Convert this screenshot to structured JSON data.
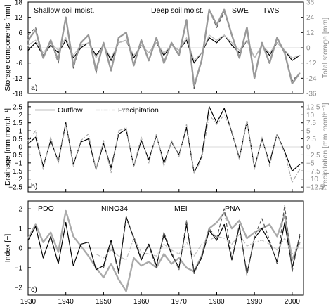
{
  "chart_data": [
    {
      "type": "line",
      "panel_label": "a)",
      "xlim": [
        1930,
        2003
      ],
      "ylabel": "Storage components [mm]",
      "ylim": [
        -18,
        18
      ],
      "yticks": [
        -18,
        -12,
        -6,
        0,
        6,
        12,
        18
      ],
      "ylabel_right": "Total storage [mm]",
      "ylim_right": [
        -36,
        36
      ],
      "yticks_right": [
        -36,
        -24,
        -12,
        0,
        12,
        24,
        36
      ],
      "legend": "top",
      "series": [
        {
          "name": "Shallow soil moist.",
          "axis": "left",
          "style": "solid",
          "color": "#000000",
          "x": [
            1930,
            1932,
            1934,
            1936,
            1938,
            1940,
            1942,
            1944,
            1946,
            1948,
            1950,
            1952,
            1954,
            1956,
            1958,
            1960,
            1962,
            1964,
            1966,
            1968,
            1970,
            1972,
            1974,
            1976,
            1978,
            1980,
            1982,
            1984,
            1986,
            1988,
            1990,
            1992,
            1994,
            1996,
            1998,
            2000,
            2002
          ],
          "y": [
            -1,
            2,
            -3,
            1,
            -2,
            3,
            -4,
            0,
            2,
            -3,
            1,
            -5,
            2,
            3,
            -4,
            1,
            -2,
            2,
            -3,
            1,
            -1,
            3,
            -6,
            -2,
            4,
            2,
            5,
            1,
            -2,
            3,
            -4,
            1,
            -3,
            2,
            -1,
            -5,
            -3
          ]
        },
        {
          "name": "Deep soil moist.",
          "axis": "left",
          "style": "dashed",
          "color": "#555555",
          "x": [
            1930,
            1932,
            1934,
            1936,
            1938,
            1940,
            1942,
            1944,
            1946,
            1948,
            1950,
            1952,
            1954,
            1956,
            1958,
            1960,
            1962,
            1964,
            1966,
            1968,
            1970,
            1972,
            1974,
            1976,
            1978,
            1980,
            1982,
            1984,
            1986,
            1988,
            1990,
            1992,
            1994,
            1996,
            1998,
            2000,
            2002
          ],
          "y": [
            5,
            8,
            -4,
            3,
            -6,
            12,
            -8,
            2,
            5,
            -10,
            2,
            -9,
            4,
            6,
            -7,
            3,
            -5,
            4,
            -6,
            2,
            -3,
            10,
            -16,
            -5,
            15,
            8,
            14,
            5,
            -4,
            8,
            -12,
            2,
            -6,
            4,
            -2,
            -13,
            -10
          ]
        },
        {
          "name": "SWE",
          "axis": "left",
          "style": "solid",
          "color": "#bdbdbd",
          "x": [
            1930,
            1932,
            1934,
            1936,
            1938,
            1940,
            1942,
            1944,
            1946,
            1948,
            1950,
            1952,
            1954,
            1956,
            1958,
            1960,
            1962,
            1964,
            1966,
            1968,
            1970,
            1972,
            1974,
            1976,
            1978,
            1980,
            1982,
            1984,
            1986,
            1988,
            1990,
            1992,
            1994,
            1996,
            1998,
            2000,
            2002
          ],
          "y": [
            1,
            3,
            -2,
            2,
            -1,
            4,
            -3,
            1,
            2,
            -4,
            1,
            -4,
            2,
            3,
            -3,
            1,
            -2,
            2,
            -2,
            1,
            -1,
            4,
            -5,
            -2,
            5,
            3,
            5,
            2,
            -1,
            3,
            -4,
            1,
            -2,
            2,
            -1,
            -4,
            -3
          ]
        },
        {
          "name": "TWS",
          "axis": "right",
          "style": "solid-thick",
          "color": "#999999",
          "x": [
            1930,
            1932,
            1934,
            1936,
            1938,
            1940,
            1942,
            1944,
            1946,
            1948,
            1950,
            1952,
            1954,
            1956,
            1958,
            1960,
            1962,
            1964,
            1966,
            1968,
            1970,
            1972,
            1974,
            1976,
            1978,
            1980,
            1982,
            1984,
            1986,
            1988,
            1990,
            1992,
            1994,
            1996,
            1998,
            2000,
            2002
          ],
          "y": [
            6,
            14,
            -8,
            6,
            -10,
            24,
            -14,
            4,
            10,
            -18,
            4,
            -18,
            8,
            12,
            -14,
            6,
            -10,
            8,
            -12,
            4,
            -6,
            22,
            -30,
            -10,
            30,
            18,
            30,
            10,
            -8,
            16,
            -24,
            4,
            -12,
            8,
            -4,
            -28,
            -20
          ]
        }
      ]
    },
    {
      "type": "line",
      "panel_label": "b)",
      "xlim": [
        1930,
        2003
      ],
      "ylabel": "Drainage [mm month⁻¹]",
      "ylim": [
        -2.8,
        2.8
      ],
      "yticks": [
        -2.5,
        -2,
        -1.5,
        -1,
        -0.5,
        0,
        0.5,
        1,
        1.5,
        2,
        2.5
      ],
      "yticklabels": [
        "−2.5",
        "−2",
        "−1.5",
        "−1",
        "−0.5",
        "0",
        "0.5",
        "1",
        "1.5",
        "2",
        "2.5"
      ],
      "ylabel_right": "Precipitation [mm month⁻¹]",
      "ylim_right": [
        -14,
        14
      ],
      "yticks_right": [
        -12.5,
        -10,
        -7.5,
        -5,
        -2.5,
        0,
        2.5,
        5,
        7.5,
        10,
        12.5
      ],
      "yticklabels_right": [
        "−12.5",
        "−10",
        "−7.5",
        "−5",
        "−2.5",
        "0",
        "2.5",
        "5",
        "7.5",
        "10",
        "12.5"
      ],
      "legend": "top-left",
      "series": [
        {
          "name": "Outflow",
          "axis": "left",
          "style": "solid",
          "color": "#000000",
          "x": [
            1930,
            1932,
            1934,
            1936,
            1938,
            1940,
            1942,
            1944,
            1946,
            1948,
            1950,
            1952,
            1954,
            1956,
            1958,
            1960,
            1962,
            1964,
            1966,
            1968,
            1970,
            1972,
            1974,
            1976,
            1978,
            1980,
            1982,
            1984,
            1986,
            1988,
            1990,
            1992,
            1994,
            1996,
            1998,
            2000,
            2002
          ],
          "y": [
            0.2,
            0.6,
            -1.2,
            0.4,
            -0.9,
            1.5,
            -1.1,
            0.3,
            0.5,
            -1.4,
            0.2,
            -1.3,
            0.8,
            1.1,
            -1.2,
            0.4,
            -0.8,
            0.7,
            -1.0,
            0.3,
            -0.5,
            1.2,
            -1.6,
            -0.6,
            2.5,
            1.5,
            2.4,
            0.9,
            -0.7,
            1.6,
            -1.3,
            0.5,
            -1.0,
            0.8,
            -0.3,
            -1.5,
            -1.1
          ]
        },
        {
          "name": "Precipitation",
          "axis": "right",
          "style": "dashdot",
          "color": "#aaaaaa",
          "x": [
            1930,
            1932,
            1934,
            1936,
            1938,
            1940,
            1942,
            1944,
            1946,
            1948,
            1950,
            1952,
            1954,
            1956,
            1958,
            1960,
            1962,
            1964,
            1966,
            1968,
            1970,
            1972,
            1974,
            1976,
            1978,
            1980,
            1982,
            1984,
            1986,
            1988,
            1990,
            1992,
            1994,
            1996,
            1998,
            2000,
            2002
          ],
          "y": [
            2,
            5,
            -7,
            3,
            -5,
            7,
            -6,
            2,
            4,
            -7,
            2,
            -8,
            5,
            6,
            -6,
            3,
            -5,
            4,
            -6,
            2,
            -3,
            7,
            -8,
            -4,
            10,
            7,
            10,
            5,
            -4,
            8,
            -7,
            3,
            -6,
            4,
            -2,
            -11,
            -7
          ]
        }
      ]
    },
    {
      "type": "line",
      "panel_label": "c)",
      "xlim": [
        1930,
        2003
      ],
      "xticks": [
        1930,
        1940,
        1950,
        1960,
        1970,
        1980,
        1990,
        2000
      ],
      "ylabel": "Index [−]",
      "ylim": [
        -2.4,
        2.4
      ],
      "yticks": [
        -2,
        -1,
        0,
        1,
        2
      ],
      "yticklabels": [
        "−2",
        "−1",
        "0",
        "1",
        "2"
      ],
      "legend": "top",
      "series": [
        {
          "name": "PDO",
          "style": "solid-thick",
          "color": "#aaaaaa",
          "x": [
            1930,
            1932,
            1934,
            1936,
            1938,
            1940,
            1942,
            1944,
            1946,
            1948,
            1950,
            1952,
            1954,
            1956,
            1958,
            1960,
            1962,
            1964,
            1966,
            1968,
            1970,
            1972,
            1974,
            1976,
            1978,
            1980,
            1982,
            1984,
            1986,
            1988,
            1990,
            1992,
            1994,
            1996,
            1998,
            2000,
            2002
          ],
          "y": [
            0.5,
            1.2,
            0.3,
            0.8,
            -0.2,
            1.9,
            0.6,
            0.1,
            -0.4,
            -1.0,
            -1.5,
            -0.8,
            -1.6,
            -2.2,
            -0.5,
            -0.9,
            -0.7,
            -1.0,
            -0.3,
            -0.8,
            -0.5,
            -1.0,
            -1.2,
            -0.4,
            1.0,
            1.3,
            1.8,
            1.0,
            1.4,
            0.5,
            0.8,
            1.0,
            1.2,
            0.6,
            1.7,
            -0.6,
            0.3
          ]
        },
        {
          "name": "NINO34",
          "style": "solid",
          "color": "#000000",
          "x": [
            1930,
            1932,
            1934,
            1936,
            1938,
            1940,
            1942,
            1944,
            1946,
            1948,
            1950,
            1952,
            1954,
            1956,
            1958,
            1960,
            1962,
            1964,
            1966,
            1968,
            1970,
            1972,
            1974,
            1976,
            1978,
            1980,
            1982,
            1984,
            1986,
            1988,
            1990,
            1992,
            1994,
            1996,
            1998,
            2000,
            2002
          ],
          "y": [
            0.4,
            1.1,
            -0.5,
            0.6,
            -0.8,
            1.3,
            -0.9,
            0.2,
            0.3,
            -1.1,
            -0.9,
            0.4,
            -1.2,
            1.6,
            0.5,
            -0.6,
            0.2,
            -0.9,
            0.7,
            -0.3,
            -1.0,
            1.2,
            -1.2,
            -0.5,
            0.9,
            0.4,
            1.2,
            -0.6,
            1.1,
            -1.3,
            0.5,
            1.0,
            0.3,
            -0.7,
            1.3,
            -1.0,
            0.6
          ]
        },
        {
          "name": "MEI",
          "style": "dashed",
          "color": "#555555",
          "x": [
            1950,
            1952,
            1954,
            1956,
            1958,
            1960,
            1962,
            1964,
            1966,
            1968,
            1970,
            1972,
            1974,
            1976,
            1978,
            1980,
            1982,
            1984,
            1986,
            1988,
            1990,
            1992,
            1994,
            1996,
            1998,
            2000,
            2002
          ],
          "y": [
            -1.0,
            0.3,
            -1.3,
            1.5,
            0.6,
            -0.5,
            0.1,
            -1.0,
            0.8,
            -0.2,
            -1.1,
            1.4,
            -1.3,
            -0.4,
            1.0,
            0.5,
            2.0,
            -0.5,
            1.2,
            -1.4,
            0.6,
            1.5,
            0.4,
            -0.8,
            2.2,
            -1.2,
            0.7
          ]
        },
        {
          "name": "PNA",
          "style": "dashdot",
          "color": "#bdbdbd",
          "x": [
            1948,
            1950,
            1952,
            1954,
            1956,
            1958,
            1960,
            1962,
            1964,
            1966,
            1968,
            1970,
            1972,
            1974,
            1976,
            1978,
            1980,
            1982,
            1984,
            1986,
            1988,
            1990,
            1992,
            1994,
            1996,
            1998,
            2000,
            2002
          ],
          "y": [
            -0.3,
            -0.5,
            -0.1,
            -0.4,
            -0.6,
            0.5,
            -0.2,
            -0.3,
            -0.4,
            0.2,
            -0.1,
            -0.3,
            0.3,
            -0.4,
            0.2,
            0.4,
            0.6,
            0.5,
            0.2,
            0.7,
            0.1,
            0.3,
            0.4,
            0.2,
            -0.1,
            0.5,
            -0.3,
            0.2
          ]
        }
      ]
    }
  ]
}
